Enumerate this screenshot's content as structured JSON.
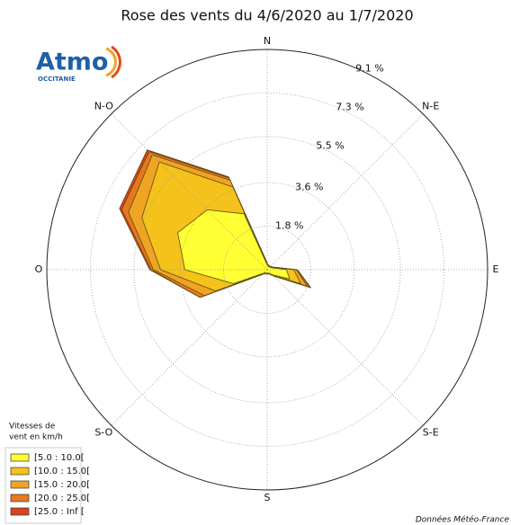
{
  "chart_data": {
    "type": "windrose",
    "title": "Rose des vents du 4/6/2020 au 1/7/2020",
    "logo": {
      "name": "Atmo",
      "region": "OCCITANIE"
    },
    "categories": [
      "N",
      null,
      "N-E",
      null,
      "E",
      null,
      "S-E",
      null,
      "S",
      null,
      "S-O",
      null,
      "O",
      null,
      "N-O",
      null
    ],
    "rlim": [
      0,
      9.1
    ],
    "rticks": [
      {
        "value": 1.8,
        "label": "1.8 %"
      },
      {
        "value": 3.6,
        "label": "3.6 %"
      },
      {
        "value": 5.5,
        "label": "5.5 %"
      },
      {
        "value": 7.3,
        "label": "7.3 %"
      },
      {
        "value": 9.1,
        "label": "9.1 %"
      }
    ],
    "grid": true,
    "legend_title": [
      "Vitesses de",
      "vent en km/h"
    ],
    "series": [
      {
        "name": "[5.0 : 10.0[",
        "color": "#ffff33",
        "values": [
          0.2,
          0.15,
          0.15,
          0.2,
          0.8,
          1.0,
          0.3,
          0.15,
          0.15,
          0.15,
          0.2,
          1.5,
          3.4,
          4.0,
          3.5,
          2.5
        ]
      },
      {
        "name": "[10.0 : 15.0[",
        "color": "#f5c21b",
        "values": [
          0.05,
          0.03,
          0.03,
          0.05,
          0.3,
          0.5,
          0.05,
          0.03,
          0.03,
          0.03,
          0.05,
          0.8,
          1.0,
          1.6,
          2.8,
          1.2
        ]
      },
      {
        "name": "[15.0 : 20.0[",
        "color": "#f0a424",
        "values": [
          0.02,
          0,
          0,
          0.02,
          0.1,
          0.3,
          0.02,
          0,
          0,
          0,
          0.02,
          0.5,
          0.3,
          0.6,
          0.4,
          0.3
        ]
      },
      {
        "name": "[20.0 : 25.0[",
        "color": "#e8781f",
        "values": [
          0,
          0,
          0,
          0,
          0.05,
          0.1,
          0,
          0,
          0,
          0,
          0,
          0.2,
          0.1,
          0.3,
          0.2,
          0.1
        ]
      },
      {
        "name": "[25.0 : Inf [",
        "color": "#d9431b",
        "values": [
          0,
          0,
          0,
          0,
          0,
          0.05,
          0,
          0,
          0,
          0,
          0,
          0,
          0.05,
          0.1,
          0.1,
          0.05
        ]
      }
    ],
    "source": "Données Météo-France"
  }
}
